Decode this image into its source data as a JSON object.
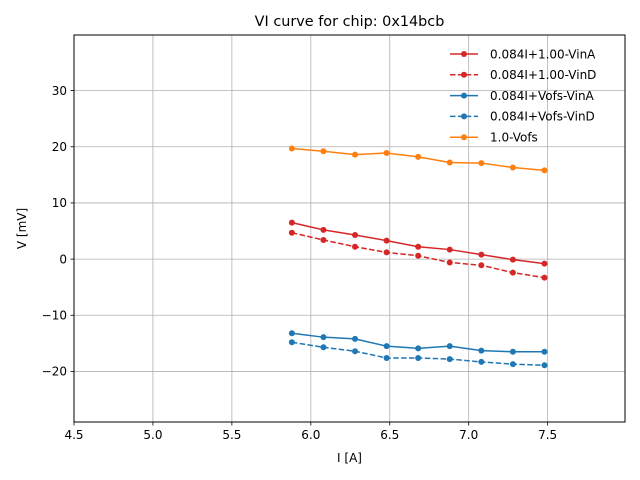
{
  "chart_data": {
    "type": "line",
    "title": "VI curve for chip: 0x14bcb",
    "xlabel": "I [A]",
    "ylabel": "V [mV]",
    "xlim": [
      4.5,
      7.99
    ],
    "ylim": [
      -29,
      39.9
    ],
    "xticks": [
      4.5,
      5.0,
      5.5,
      6.0,
      6.5,
      7.0,
      7.5
    ],
    "xtick_labels": [
      "4.5",
      "5.0",
      "5.5",
      "6.0",
      "6.5",
      "7.0",
      "7.5"
    ],
    "yticks": [
      -20,
      -10,
      0,
      10,
      20,
      30
    ],
    "ytick_labels": [
      "−20",
      "−10",
      "0",
      "10",
      "20",
      "30"
    ],
    "grid": true,
    "legend_position": "top-right",
    "x": [
      5.88,
      6.08,
      6.28,
      6.48,
      6.68,
      6.88,
      7.08,
      7.28,
      7.48
    ],
    "series": [
      {
        "name": "0.084I+1.00-VinA",
        "color": "#d62728",
        "dashed": false,
        "values": [
          6.5,
          5.2,
          4.3,
          3.3,
          2.2,
          1.7,
          0.8,
          -0.1,
          -0.8
        ]
      },
      {
        "name": "0.084I+1.00-VinD",
        "color": "#d62728",
        "dashed": true,
        "values": [
          4.7,
          3.4,
          2.2,
          1.2,
          0.6,
          -0.6,
          -1.1,
          -2.4,
          -3.3
        ]
      },
      {
        "name": "0.084I+Vofs-VinA",
        "color": "#1f77b4",
        "dashed": false,
        "values": [
          -13.2,
          -13.9,
          -14.2,
          -15.5,
          -15.9,
          -15.5,
          -16.3,
          -16.5,
          -16.5
        ]
      },
      {
        "name": "0.084I+Vofs-VinD",
        "color": "#1f77b4",
        "dashed": true,
        "values": [
          -14.8,
          -15.7,
          -16.4,
          -17.6,
          -17.6,
          -17.8,
          -18.3,
          -18.7,
          -18.9
        ]
      },
      {
        "name": "1.0-Vofs",
        "color": "#ff7f0e",
        "dashed": false,
        "values": [
          19.7,
          19.2,
          18.6,
          18.9,
          18.2,
          17.2,
          17.1,
          16.3,
          15.8
        ]
      }
    ]
  }
}
